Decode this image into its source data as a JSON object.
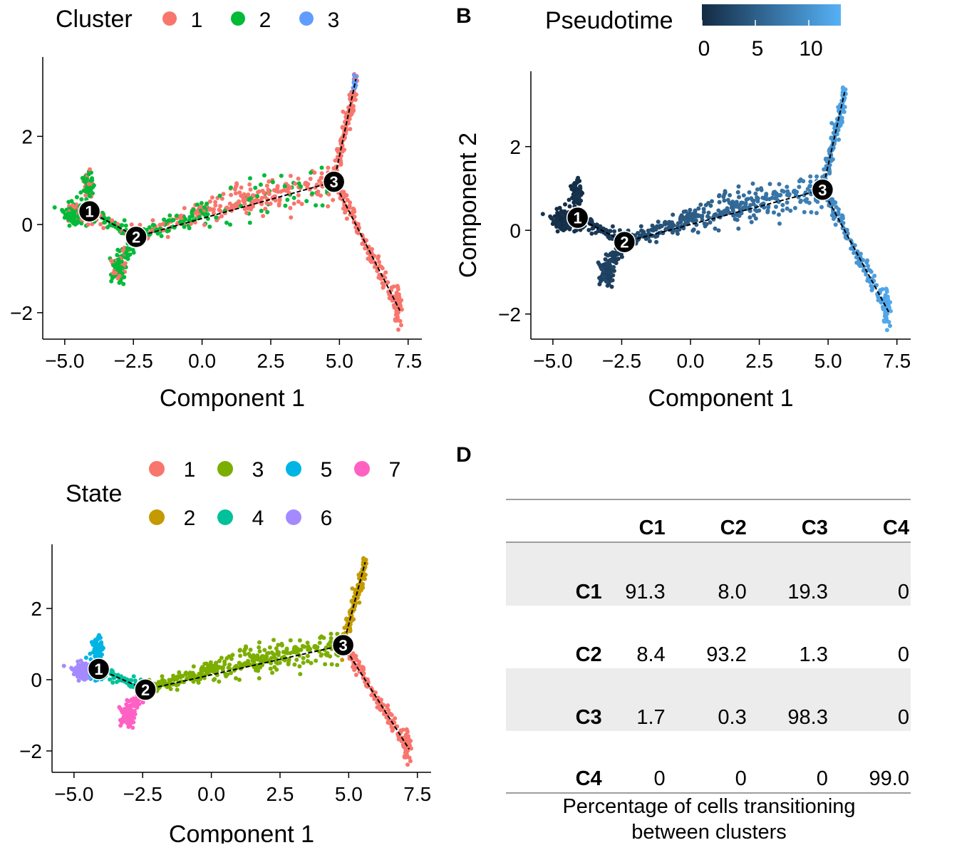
{
  "panel_labels": {
    "b": "B",
    "d": "D"
  },
  "chart_data": [
    {
      "id": "A",
      "type": "scatter",
      "xlabel": "Component 1",
      "ylabel": "",
      "xlim": [
        -5.8,
        8.0
      ],
      "ylim": [
        -2.6,
        3.8
      ],
      "xticks": [
        -5.0,
        -2.5,
        0.0,
        2.5,
        5.0,
        7.5
      ],
      "xtick_labels": [
        "−5.0",
        "−2.5",
        "0.0",
        "2.5",
        "5.0",
        "7.5"
      ],
      "yticks": [
        -2,
        0,
        2
      ],
      "ytick_labels": [
        "−2",
        "0",
        "2"
      ],
      "legend": {
        "title": "Cluster",
        "position": "top",
        "entries": [
          {
            "label": "1",
            "color": "#F8766D"
          },
          {
            "label": "2",
            "color": "#00BA38"
          },
          {
            "label": "3",
            "color": "#619CFF"
          }
        ]
      },
      "trajectory": [
        [
          -4.1,
          0.3
        ],
        [
          -2.4,
          -0.28
        ],
        [
          4.8,
          0.97
        ],
        [
          5.6,
          3.3
        ],
        [
          7.2,
          -1.95
        ]
      ],
      "branch_points": [
        {
          "label": "1",
          "x": -4.1,
          "y": 0.3
        },
        {
          "label": "2",
          "x": -2.4,
          "y": -0.28
        },
        {
          "label": "3",
          "x": 4.8,
          "y": 0.97
        }
      ],
      "colored_by": "cluster"
    },
    {
      "id": "B",
      "type": "scatter",
      "xlabel": "Component 1",
      "ylabel": "Component 2",
      "xlim": [
        -5.8,
        8.0
      ],
      "ylim": [
        -2.6,
        3.8
      ],
      "xticks": [
        -5.0,
        -2.5,
        0.0,
        2.5,
        5.0,
        7.5
      ],
      "xtick_labels": [
        "−5.0",
        "−2.5",
        "0.0",
        "2.5",
        "5.0",
        "7.5"
      ],
      "yticks": [
        -2,
        0,
        2
      ],
      "ytick_labels": [
        "−2",
        "0",
        "2"
      ],
      "legend": {
        "title": "Pseudotime",
        "position": "top",
        "colorbar": {
          "min": 0,
          "max": 13,
          "low_color": "#132B43",
          "high_color": "#56B1F7",
          "ticks": [
            0,
            5,
            10
          ],
          "tick_labels": [
            "0",
            "5",
            "10"
          ]
        }
      },
      "trajectory": [
        [
          -4.1,
          0.3
        ],
        [
          -2.4,
          -0.28
        ],
        [
          4.8,
          0.97
        ],
        [
          5.6,
          3.3
        ],
        [
          7.2,
          -1.95
        ]
      ],
      "branch_points": [
        {
          "label": "1",
          "x": -4.1,
          "y": 0.3
        },
        {
          "label": "2",
          "x": -2.4,
          "y": -0.28
        },
        {
          "label": "3",
          "x": 4.8,
          "y": 0.97
        }
      ],
      "colored_by": "pseudotime"
    },
    {
      "id": "C",
      "type": "scatter",
      "xlabel": "Component 1",
      "ylabel": "",
      "xlim": [
        -5.8,
        8.0
      ],
      "ylim": [
        -2.6,
        3.8
      ],
      "xticks": [
        -5.0,
        -2.5,
        0.0,
        2.5,
        5.0,
        7.5
      ],
      "xtick_labels": [
        "−5.0",
        "−2.5",
        "0.0",
        "2.5",
        "5.0",
        "7.5"
      ],
      "yticks": [
        -2,
        0,
        2
      ],
      "ytick_labels": [
        "−2",
        "0",
        "2"
      ],
      "legend": {
        "title": "State",
        "position": "top",
        "entries": [
          {
            "label": "1",
            "color": "#F8766D"
          },
          {
            "label": "3",
            "color": "#7CAE00"
          },
          {
            "label": "5",
            "color": "#00B4E4"
          },
          {
            "label": "7",
            "color": "#FF61C3"
          },
          {
            "label": "2",
            "color": "#C49A00"
          },
          {
            "label": "4",
            "color": "#00C19A"
          },
          {
            "label": "6",
            "color": "#A58AFF"
          }
        ]
      },
      "trajectory": [
        [
          -4.1,
          0.3
        ],
        [
          -2.4,
          -0.28
        ],
        [
          4.8,
          0.97
        ],
        [
          5.6,
          3.3
        ],
        [
          7.2,
          -1.95
        ]
      ],
      "branch_points": [
        {
          "label": "1",
          "x": -4.1,
          "y": 0.3
        },
        {
          "label": "2",
          "x": -2.4,
          "y": -0.28
        },
        {
          "label": "3",
          "x": 4.8,
          "y": 0.97
        }
      ],
      "colored_by": "state"
    },
    {
      "id": "D",
      "type": "table",
      "columns": [
        "",
        "C1",
        "C2",
        "C3",
        "C4"
      ],
      "rows": [
        [
          "C1",
          "91.3",
          "8.0",
          "19.3",
          "0"
        ],
        [
          "C2",
          "8.4",
          "93.2",
          "1.3",
          "0"
        ],
        [
          "C3",
          "1.7",
          "0.3",
          "98.3",
          "0"
        ],
        [
          "C4",
          "0",
          "0",
          "0",
          "99.0"
        ]
      ],
      "caption_line1": "Percentage of cells transitioning",
      "caption_line2": "between clusters"
    }
  ]
}
